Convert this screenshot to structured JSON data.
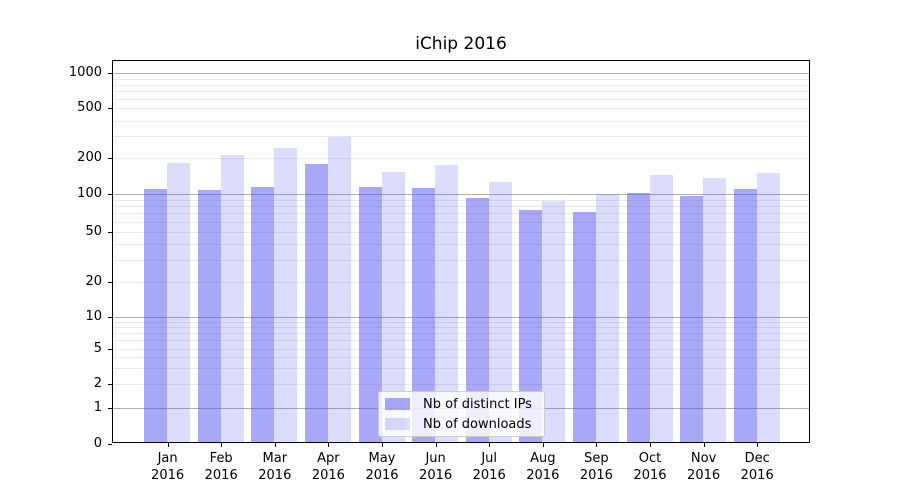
{
  "chart_data": {
    "type": "bar",
    "title": "iChip 2016",
    "xlabel": "",
    "ylabel": "",
    "yscale": "symlog",
    "ylim": [
      0,
      1000
    ],
    "y_ticks": [
      0,
      1,
      2,
      5,
      10,
      20,
      50,
      100,
      200,
      500,
      1000
    ],
    "grid": "horizontal major (powers of 10) + faint minor lines",
    "legend_position": "lower center",
    "categories": [
      "Jan",
      "Feb",
      "Mar",
      "Apr",
      "May",
      "Jun",
      "Jul",
      "Aug",
      "Sep",
      "Oct",
      "Nov",
      "Dec"
    ],
    "category_year": "2016",
    "series": [
      {
        "name": "Nb of distinct IPs",
        "color": "rgba(81,81,241,0.5)",
        "values": [
          110,
          108,
          115,
          180,
          115,
          112,
          93,
          74,
          72,
          103,
          97,
          111
        ]
      },
      {
        "name": "Nb of downloads",
        "color": "rgba(81,81,241,0.2)",
        "values": [
          181,
          212,
          240,
          295,
          152,
          175,
          126,
          88,
          100,
          146,
          137,
          150
        ]
      }
    ]
  },
  "colors": {
    "bar_base": "#5151f1",
    "grid_major": "#b0b0b0",
    "grid_minor": "#e9e9e9",
    "spine": "#000000",
    "legend_border": "#cccccc"
  }
}
